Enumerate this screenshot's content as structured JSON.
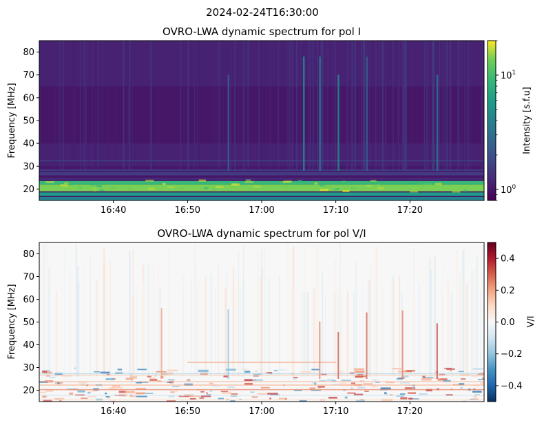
{
  "figure_title": "2024-02-24T16:30:00",
  "chart_data": [
    {
      "type": "heatmap",
      "title": "OVRO-LWA dynamic spectrum for pol I",
      "xlabel": "",
      "ylabel": "Frequency [MHz]",
      "x_ticks": [
        "16:40",
        "16:50",
        "17:00",
        "17:10",
        "17:20"
      ],
      "x_range": [
        "16:30",
        "17:30"
      ],
      "ylim": [
        15,
        85
      ],
      "y_ticks": [
        20,
        30,
        40,
        50,
        60,
        70,
        80
      ],
      "colormap": "viridis",
      "colorbar": {
        "label": "Intensity [s.f.u]",
        "scale": "log",
        "range": [
          0.8,
          20
        ],
        "ticks": [
          {
            "base": "10",
            "exp": "0",
            "value": 1
          },
          {
            "base": "10",
            "exp": "1",
            "value": 10
          }
        ]
      },
      "bands_mhz": [
        {
          "range": [
            15,
            16.5
          ],
          "intensity": 4
        },
        {
          "range": [
            17,
            18.5
          ],
          "intensity": 6
        },
        {
          "range": [
            19,
            22
          ],
          "intensity": 14
        },
        {
          "range": [
            22,
            23.5
          ],
          "intensity": 9
        },
        {
          "range": [
            24,
            25
          ],
          "intensity": 1.2
        },
        {
          "range": [
            26,
            27.5
          ],
          "intensity": 1.5
        },
        {
          "range": [
            28,
            28.6
          ],
          "intensity": 1.6
        }
      ],
      "bursts_time": [
        "16:55:30",
        "17:07:50",
        "17:10:20",
        "17:14:10",
        "17:23:40",
        "17:05:40"
      ]
    },
    {
      "type": "heatmap",
      "title": "OVRO-LWA dynamic spectrum for pol V/I",
      "xlabel": "",
      "ylabel": "Frequency [MHz]",
      "x_ticks": [
        "16:40",
        "16:50",
        "17:00",
        "17:10",
        "17:20"
      ],
      "x_range": [
        "16:30",
        "17:30"
      ],
      "ylim": [
        15,
        85
      ],
      "y_ticks": [
        20,
        30,
        40,
        50,
        60,
        70,
        80
      ],
      "colormap": "RdBu_r",
      "colorbar": {
        "label": "V/I",
        "scale": "linear",
        "range": [
          -0.5,
          0.5
        ],
        "ticks": [
          "0.4",
          "0.2",
          "0.0",
          "−0.2",
          "−0.4"
        ],
        "tick_values": [
          0.4,
          0.2,
          0.0,
          -0.2,
          -0.4
        ]
      }
    }
  ]
}
